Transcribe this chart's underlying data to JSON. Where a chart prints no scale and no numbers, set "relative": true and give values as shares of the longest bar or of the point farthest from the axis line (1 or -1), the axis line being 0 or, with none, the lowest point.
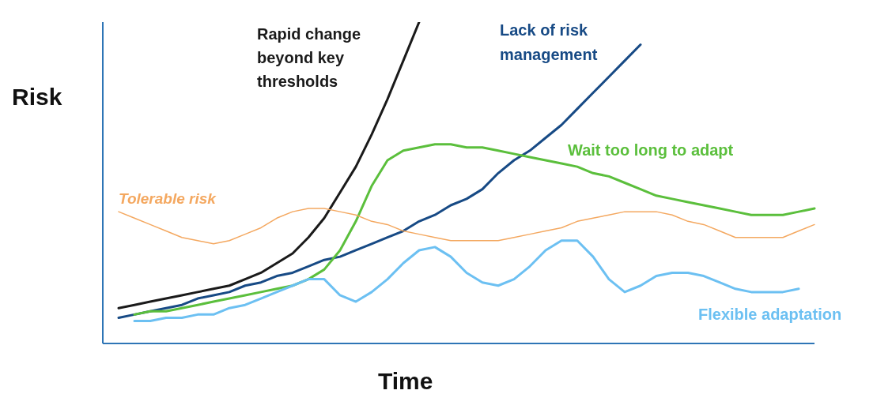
{
  "chart_data": {
    "type": "line",
    "relative": true,
    "xlabel": "Time",
    "ylabel": "Risk",
    "legend": false,
    "marker": "none",
    "line_style": "solid",
    "categories": [
      null,
      null,
      null,
      null,
      null,
      null,
      null,
      null,
      null,
      null,
      null,
      null,
      null,
      null,
      null,
      null,
      null,
      null,
      null,
      null,
      null,
      null,
      null,
      null,
      null,
      null,
      null,
      null,
      null,
      null,
      null,
      null,
      null,
      null,
      null,
      null,
      null,
      null,
      null,
      null,
      null,
      null,
      null,
      null,
      null
    ],
    "series": [
      {
        "name": "Rapid change beyond key thresholds",
        "color": "#1a1a1a",
        "values": [
          0.11,
          0.12,
          0.13,
          0.14,
          0.15,
          0.16,
          0.17,
          0.18,
          0.2,
          0.22,
          0.25,
          0.28,
          0.33,
          0.39,
          0.47,
          0.55,
          0.65,
          0.76,
          0.88,
          1.0,
          null,
          null,
          null,
          null,
          null,
          null,
          null,
          null,
          null,
          null,
          null,
          null,
          null,
          null,
          null,
          null,
          null,
          null,
          null,
          null,
          null,
          null,
          null,
          null,
          null
        ]
      },
      {
        "name": "Lack of risk management",
        "color": "#174a85",
        "values": [
          0.08,
          0.09,
          0.1,
          0.11,
          0.12,
          0.14,
          0.15,
          0.16,
          0.18,
          0.19,
          0.21,
          0.22,
          0.24,
          0.26,
          0.27,
          0.29,
          0.31,
          0.33,
          0.35,
          0.38,
          0.4,
          0.43,
          0.45,
          0.48,
          0.53,
          0.57,
          0.6,
          0.64,
          0.68,
          0.73,
          0.78,
          0.83,
          0.88,
          0.93,
          null,
          null,
          null,
          null,
          null,
          null,
          null,
          null,
          null,
          null,
          null
        ]
      },
      {
        "name": "Wait too long to adapt",
        "color": "#5bbf3c",
        "values": [
          null,
          0.09,
          0.1,
          0.1,
          0.11,
          0.12,
          0.13,
          0.14,
          0.15,
          0.16,
          0.17,
          0.18,
          0.2,
          0.23,
          0.29,
          0.38,
          0.49,
          0.57,
          0.6,
          0.61,
          0.62,
          0.62,
          0.61,
          0.61,
          0.6,
          0.59,
          0.58,
          0.57,
          0.56,
          0.55,
          0.53,
          0.52,
          0.5,
          0.48,
          0.46,
          0.45,
          0.44,
          0.43,
          0.42,
          0.41,
          0.4,
          0.4,
          0.4,
          0.41,
          0.42
        ]
      },
      {
        "name": "Flexible adaptation",
        "color": "#6cc0f2",
        "values": [
          null,
          0.07,
          0.07,
          0.08,
          0.08,
          0.09,
          0.09,
          0.11,
          0.12,
          0.14,
          0.16,
          0.18,
          0.2,
          0.2,
          0.15,
          0.13,
          0.16,
          0.2,
          0.25,
          0.29,
          0.3,
          0.27,
          0.22,
          0.19,
          0.18,
          0.2,
          0.24,
          0.29,
          0.32,
          0.32,
          0.27,
          0.2,
          0.16,
          0.18,
          0.21,
          0.22,
          0.22,
          0.21,
          0.19,
          0.17,
          0.16,
          0.16,
          0.16,
          0.17,
          null
        ]
      },
      {
        "name": "Tolerable risk",
        "color": "#f4a860",
        "values": [
          0.41,
          0.39,
          0.37,
          0.35,
          0.33,
          0.32,
          0.31,
          0.32,
          0.34,
          0.36,
          0.39,
          0.41,
          0.42,
          0.42,
          0.41,
          0.4,
          0.38,
          0.37,
          0.35,
          0.34,
          0.33,
          0.32,
          0.32,
          0.32,
          0.32,
          0.33,
          0.34,
          0.35,
          0.36,
          0.38,
          0.39,
          0.4,
          0.41,
          0.41,
          0.41,
          0.4,
          0.38,
          0.37,
          0.35,
          0.33,
          0.33,
          0.33,
          0.33,
          0.35,
          0.37
        ]
      }
    ]
  }
}
